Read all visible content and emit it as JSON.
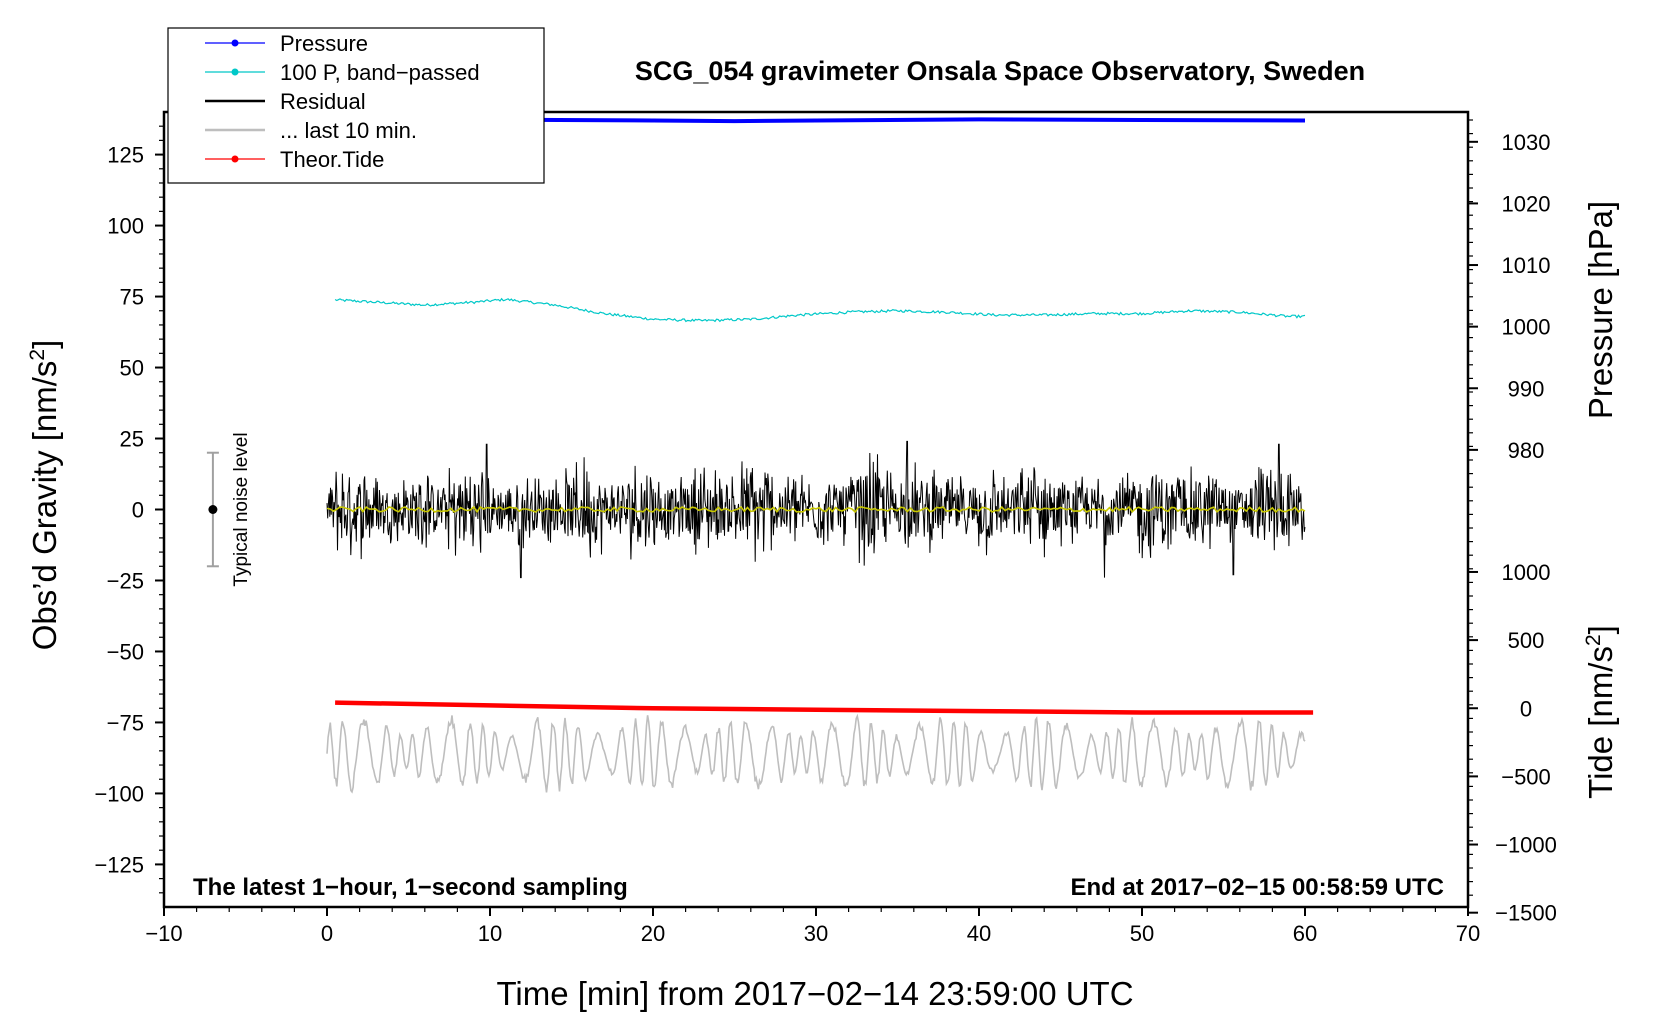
{
  "chart_data": {
    "type": "line",
    "title": "SCG_054 gravimeter Onsala Space Observatory, Sweden",
    "xlabel": "Time [min] from 2017−02−14 23:59:00 UTC",
    "ylabel_main": "Obs’d Gravity [nm/s",
    "ylabel_main_sup": "2",
    "ylabel_main_tail": "]",
    "ylabel_pressure": "Pressure [hPa]",
    "ylabel_tide": "Tide [nm/s",
    "ylabel_tide_sup": "2",
    "ylabel_tide_tail": "]",
    "xlim": [
      -10,
      70
    ],
    "ylim": [
      -140,
      140
    ],
    "x_ticks": [
      -10,
      0,
      10,
      20,
      30,
      40,
      50,
      60,
      70
    ],
    "x_tick_labels": [
      "−10",
      "0",
      "10",
      "20",
      "30",
      "40",
      "50",
      "60",
      "70"
    ],
    "y_ticks": [
      125,
      100,
      75,
      50,
      25,
      0,
      -25,
      -50,
      -75,
      -100,
      -125
    ],
    "y_tick_labels": [
      "125",
      "100",
      "75",
      "50",
      "25",
      "0",
      "−25",
      "−50",
      "−75",
      "−100",
      "−125"
    ],
    "pressure_axis": {
      "ticks": [
        1030,
        1020,
        1010,
        1000,
        990,
        980
      ],
      "tick_labels": [
        "1030",
        "1020",
        "1010",
        "1000",
        "990",
        "980"
      ],
      "gravity_at_1030": 129.5,
      "gravity_per_hpa": 2.17
    },
    "tide_axis": {
      "ticks": [
        1000,
        500,
        0,
        -500,
        -1000,
        -1500
      ],
      "tick_labels": [
        "1000",
        "500",
        "0",
        "−500",
        "−1000",
        "−1500"
      ],
      "gravity_at_0": -70,
      "gravity_per_500": 24
    },
    "legend": [
      {
        "label": "Pressure",
        "color": "#0000ff",
        "marker": true
      },
      {
        "label": "100 P, band−passed",
        "color": "#00c8c8",
        "marker": true
      },
      {
        "label": "Residual",
        "color": "#000000",
        "marker": false
      },
      {
        "label": "... last 10 min.",
        "color": "#bebebe",
        "marker": false
      },
      {
        "label": "Theor.Tide",
        "color": "#ff0000",
        "marker": true
      }
    ],
    "series": [
      {
        "name": "Pressure",
        "color": "#0000ff",
        "axis": "gravity",
        "x": [
          0,
          10,
          20,
          25,
          30,
          40,
          50,
          60
        ],
        "values": [
          137.5,
          137.3,
          137.0,
          136.8,
          137.0,
          137.4,
          137.2,
          137.0
        ]
      },
      {
        "name": "100 P, band−passed",
        "color": "#00c8c8",
        "axis": "gravity",
        "x": [
          0,
          3,
          6,
          9,
          11,
          14,
          17,
          20,
          23,
          26,
          29,
          32,
          35,
          38,
          41,
          44,
          47,
          50,
          53,
          56,
          59,
          60
        ],
        "values": [
          74,
          73,
          72,
          73,
          74,
          72,
          69,
          67,
          66.5,
          67,
          68.5,
          69.5,
          70,
          69.5,
          68.5,
          68.5,
          69,
          69,
          70,
          69.5,
          68,
          68
        ]
      },
      {
        "name": "Residual",
        "color": "#000000",
        "axis": "gravity",
        "x_range": [
          0,
          60
        ],
        "amplitude_nm_s2": 22,
        "extremes": [
          [
            9.8,
            23
          ],
          [
            11.9,
            -24
          ],
          [
            35.6,
            24
          ],
          [
            47.7,
            -24
          ],
          [
            55.6,
            -23
          ],
          [
            58.4,
            23
          ]
        ]
      },
      {
        "name": "Residual smoothed",
        "color": "#c8c800",
        "axis": "gravity",
        "x_range": [
          0,
          60
        ],
        "level": 0
      },
      {
        "name": "... last 10 min.",
        "color": "#bebebe",
        "axis": "gravity",
        "x_range": [
          0,
          60
        ],
        "center": -86,
        "amplitude_nm_s2": 14
      },
      {
        "name": "Theor.Tide",
        "color": "#ff0000",
        "axis": "gravity",
        "x": [
          0.5,
          10,
          20,
          30,
          40,
          50,
          60.5
        ],
        "values": [
          -68,
          -69,
          -70,
          -70.5,
          -71,
          -71.5,
          -71.5
        ]
      }
    ],
    "noise_bar": {
      "label": "Typical noise level",
      "x": -7,
      "center": 0,
      "low": -20,
      "high": 20
    },
    "annotation_left": "The latest 1−hour, 1−second sampling",
    "annotation_right": "End at 2017−02−15 00:58:59 UTC"
  }
}
